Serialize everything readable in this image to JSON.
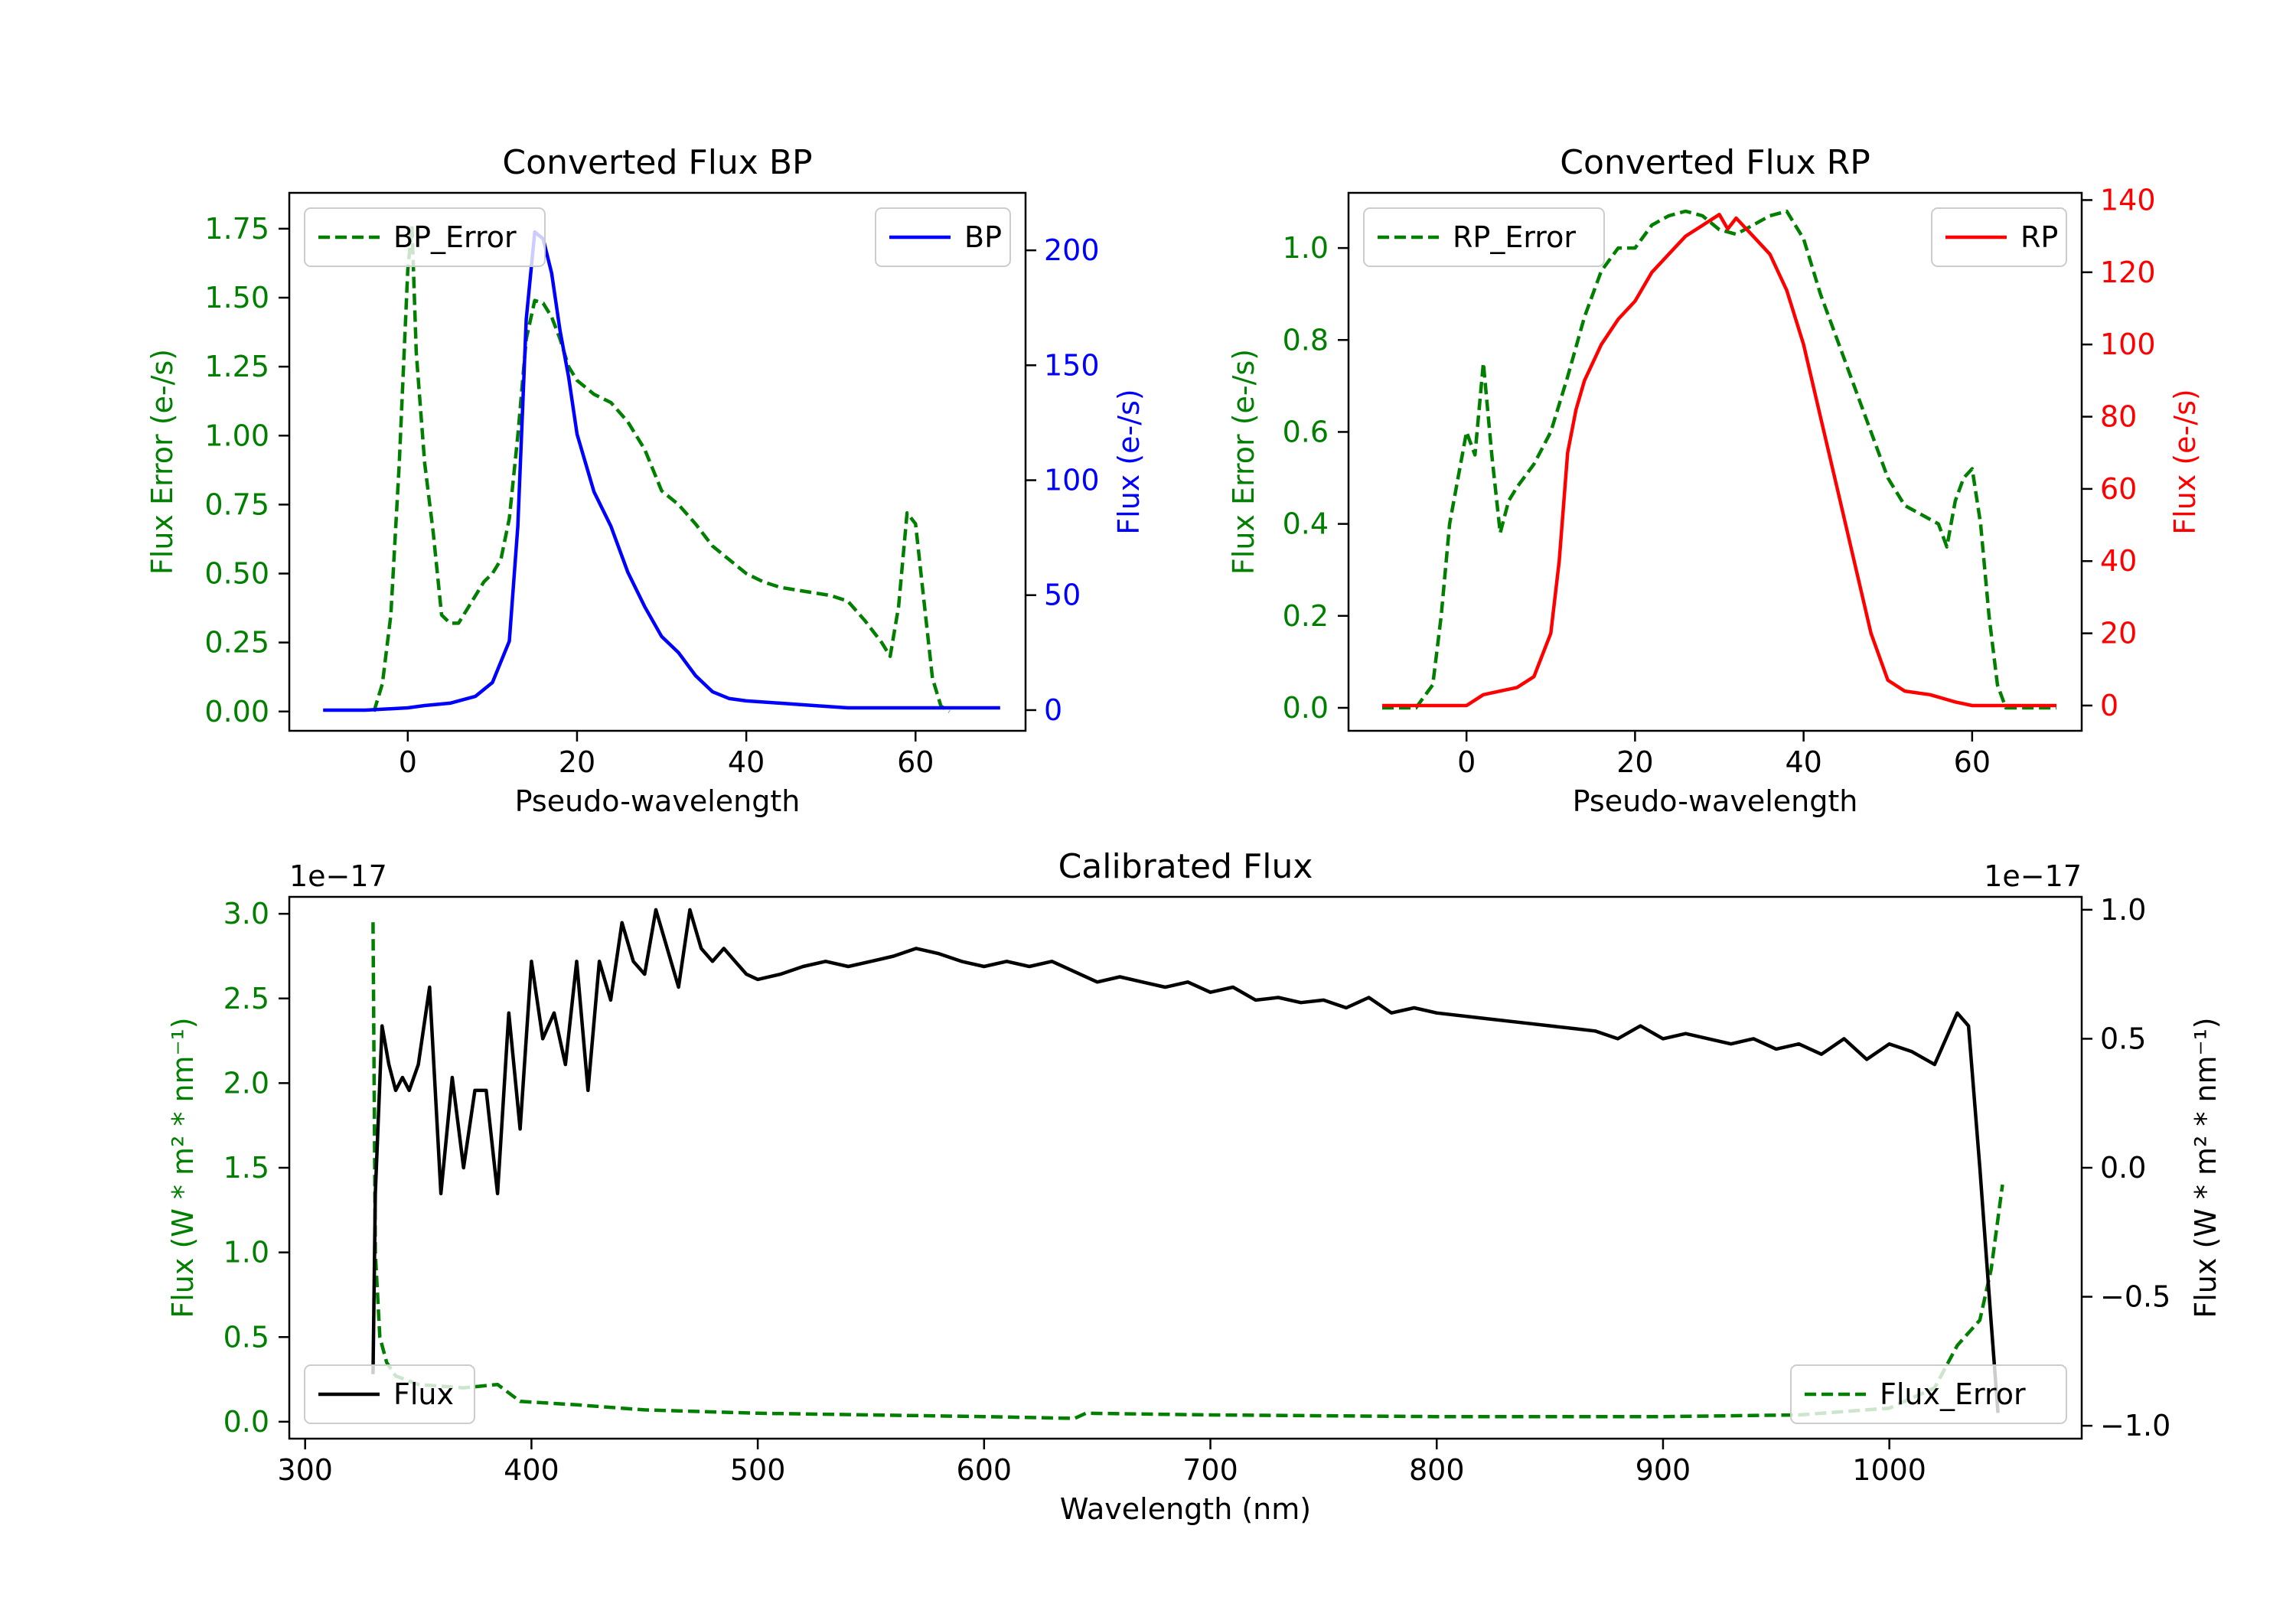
{
  "figure": {
    "colors": {
      "green": "#007f00",
      "blue": "#0000ff",
      "red": "#ff0000",
      "black": "#000000"
    }
  },
  "chart_data": [
    {
      "type": "line",
      "title": "Converted Flux BP",
      "xlabel": "Pseudo-wavelength",
      "ylabel_left": "Flux Error (e-/s)",
      "ylabel_right": "Flux (e-/s)",
      "xlim": [
        -14,
        73
      ],
      "ylim_left": [
        -0.07,
        1.88
      ],
      "ylim_right": [
        -9,
        225
      ],
      "xticks": [
        0,
        20,
        40,
        60
      ],
      "xtick_labels": [
        "0",
        "20",
        "40",
        "60"
      ],
      "yticks_left": [
        0,
        0.25,
        0.5,
        0.75,
        1.0,
        1.25,
        1.5,
        1.75
      ],
      "ytick_labels_left": [
        "0.00",
        "0.25",
        "0.50",
        "0.75",
        "1.00",
        "1.25",
        "1.50",
        "1.75"
      ],
      "yticks_right": [
        0,
        50,
        100,
        150,
        200
      ],
      "ytick_labels_right": [
        "0",
        "50",
        "100",
        "150",
        "200"
      ],
      "legend_left": {
        "label": "BP_Error",
        "loc": "upper left"
      },
      "legend_right": {
        "label": "BP",
        "loc": "upper right"
      },
      "series": [
        {
          "name": "BP_Error",
          "axis": "left",
          "color": "#007f00",
          "style": "dashed",
          "x": [
            -4,
            -3,
            -2,
            -1,
            0,
            0.5,
            1,
            2,
            3,
            4,
            5,
            6,
            7,
            8,
            9,
            10,
            11,
            12,
            13,
            14,
            15,
            16,
            17,
            18,
            19,
            20,
            22,
            24,
            26,
            28,
            30,
            32,
            34,
            36,
            38,
            40,
            42,
            44,
            46,
            48,
            50,
            52,
            54,
            56,
            57,
            58,
            59,
            60,
            61,
            62,
            63,
            64
          ],
          "y": [
            0.0,
            0.1,
            0.35,
            0.9,
            1.6,
            1.76,
            1.3,
            0.9,
            0.65,
            0.35,
            0.32,
            0.32,
            0.37,
            0.42,
            0.47,
            0.5,
            0.55,
            0.7,
            1.0,
            1.35,
            1.49,
            1.48,
            1.43,
            1.35,
            1.25,
            1.2,
            1.15,
            1.12,
            1.05,
            0.95,
            0.8,
            0.75,
            0.68,
            0.6,
            0.55,
            0.5,
            0.47,
            0.45,
            0.44,
            0.43,
            0.42,
            0.4,
            0.33,
            0.25,
            0.2,
            0.38,
            0.72,
            0.68,
            0.4,
            0.12,
            0.02,
            0.0
          ]
        },
        {
          "name": "BP",
          "axis": "right",
          "color": "#0000ff",
          "style": "solid",
          "x": [
            -10,
            -5,
            0,
            2,
            5,
            8,
            10,
            12,
            13,
            14,
            15,
            16,
            17,
            18,
            19,
            20,
            22,
            24,
            26,
            28,
            30,
            32,
            34,
            36,
            38,
            40,
            44,
            48,
            52,
            56,
            60,
            65,
            70
          ],
          "y": [
            0,
            0,
            1,
            2,
            3,
            6,
            12,
            30,
            80,
            170,
            208,
            205,
            190,
            165,
            145,
            120,
            95,
            80,
            60,
            45,
            32,
            25,
            15,
            8,
            5,
            4,
            3,
            2,
            1,
            1,
            1,
            1,
            1
          ]
        }
      ]
    },
    {
      "type": "line",
      "title": "Converted Flux RP",
      "xlabel": "Pseudo-wavelength",
      "ylabel_left": "Flux Error (e-/s)",
      "ylabel_right": "Flux (e-/s)",
      "xlim": [
        -14,
        73
      ],
      "ylim_left": [
        -0.05,
        1.12
      ],
      "ylim_right": [
        -7,
        142
      ],
      "xticks": [
        0,
        20,
        40,
        60
      ],
      "xtick_labels": [
        "0",
        "20",
        "40",
        "60"
      ],
      "yticks_left": [
        0,
        0.2,
        0.4,
        0.6,
        0.8,
        1.0
      ],
      "ytick_labels_left": [
        "0.0",
        "0.2",
        "0.4",
        "0.6",
        "0.8",
        "1.0"
      ],
      "yticks_right": [
        0,
        20,
        40,
        60,
        80,
        100,
        120,
        140
      ],
      "ytick_labels_right": [
        "0",
        "20",
        "40",
        "60",
        "80",
        "100",
        "120",
        "140"
      ],
      "legend_left": {
        "label": "RP_Error",
        "loc": "upper left"
      },
      "legend_right": {
        "label": "RP",
        "loc": "upper right"
      },
      "series": [
        {
          "name": "RP_Error",
          "axis": "left",
          "color": "#007f00",
          "style": "dashed",
          "x": [
            -10,
            -6,
            -4,
            -3,
            -2,
            -1,
            0,
            1,
            2,
            3,
            4,
            5,
            6,
            8,
            10,
            12,
            14,
            16,
            18,
            20,
            22,
            24,
            26,
            28,
            30,
            32,
            34,
            36,
            38,
            40,
            42,
            44,
            46,
            48,
            50,
            52,
            54,
            56,
            57,
            58,
            59,
            60,
            61,
            62,
            63,
            64,
            65,
            70
          ],
          "y": [
            0.0,
            0.0,
            0.05,
            0.2,
            0.4,
            0.5,
            0.6,
            0.55,
            0.75,
            0.55,
            0.38,
            0.45,
            0.48,
            0.53,
            0.6,
            0.72,
            0.85,
            0.95,
            1.0,
            1.0,
            1.05,
            1.07,
            1.08,
            1.07,
            1.04,
            1.03,
            1.05,
            1.07,
            1.08,
            1.02,
            0.9,
            0.8,
            0.7,
            0.6,
            0.5,
            0.44,
            0.42,
            0.4,
            0.35,
            0.45,
            0.5,
            0.52,
            0.4,
            0.2,
            0.05,
            0.0,
            0.0,
            0.0
          ]
        },
        {
          "name": "RP",
          "axis": "right",
          "color": "#ff0000",
          "style": "solid",
          "x": [
            -10,
            -5,
            0,
            2,
            4,
            6,
            8,
            10,
            11,
            12,
            13,
            14,
            16,
            18,
            20,
            22,
            24,
            26,
            28,
            30,
            31,
            32,
            34,
            36,
            38,
            40,
            42,
            44,
            46,
            48,
            50,
            52,
            55,
            58,
            60,
            65,
            70
          ],
          "y": [
            0,
            0,
            0,
            3,
            4,
            5,
            8,
            20,
            40,
            70,
            82,
            90,
            100,
            107,
            112,
            120,
            125,
            130,
            133,
            136,
            132,
            135,
            130,
            125,
            115,
            100,
            80,
            60,
            40,
            20,
            7,
            4,
            3,
            1,
            0,
            0,
            0
          ]
        }
      ]
    },
    {
      "type": "line",
      "title": "Calibrated Flux",
      "xlabel": "Wavelength (nm)",
      "ylabel_left": "Flux (W * m² * nm⁻¹)",
      "ylabel_right": "Flux (W * m² * nm⁻¹)",
      "offset_left": "1e−17",
      "offset_right": "1e−17",
      "xlim": [
        293,
        1085
      ],
      "ylim_left": [
        -0.1,
        3.1
      ],
      "ylim_right": [
        -1.05,
        1.05
      ],
      "xticks": [
        300,
        400,
        500,
        600,
        700,
        800,
        900,
        1000
      ],
      "xtick_labels": [
        "300",
        "400",
        "500",
        "600",
        "700",
        "800",
        "900",
        "1000"
      ],
      "yticks_left": [
        0,
        0.5,
        1.0,
        1.5,
        2.0,
        2.5,
        3.0
      ],
      "ytick_labels_left": [
        "0.0",
        "0.5",
        "1.0",
        "1.5",
        "2.0",
        "2.5",
        "3.0"
      ],
      "yticks_right": [
        -1.0,
        -0.5,
        0.0,
        0.5,
        1.0
      ],
      "ytick_labels_right": [
        "−1.0",
        "−0.5",
        "0.0",
        "0.5",
        "1.0"
      ],
      "legend_left": {
        "label": "Flux",
        "loc": "lower left"
      },
      "legend_right": {
        "label": "Flux_Error",
        "loc": "lower right"
      },
      "series": [
        {
          "name": "Flux_Error",
          "axis": "left",
          "color": "#007f00",
          "style": "dashed",
          "x": [
            330,
            331,
            333,
            336,
            340,
            350,
            370,
            385,
            395,
            420,
            450,
            500,
            550,
            600,
            640,
            645,
            700,
            800,
            900,
            960,
            1000,
            1020,
            1030,
            1040,
            1045,
            1050
          ],
          "y": [
            2.95,
            1.0,
            0.5,
            0.35,
            0.27,
            0.22,
            0.2,
            0.22,
            0.12,
            0.1,
            0.07,
            0.05,
            0.04,
            0.03,
            0.02,
            0.05,
            0.04,
            0.03,
            0.03,
            0.04,
            0.08,
            0.2,
            0.45,
            0.6,
            0.9,
            1.4
          ]
        },
        {
          "name": "Flux",
          "axis": "right",
          "color": "#000000",
          "style": "solid",
          "x": [
            330,
            331,
            334,
            337,
            340,
            343,
            346,
            350,
            355,
            360,
            365,
            370,
            375,
            380,
            385,
            390,
            395,
            400,
            405,
            410,
            415,
            420,
            425,
            430,
            435,
            440,
            445,
            450,
            455,
            460,
            465,
            470,
            475,
            480,
            485,
            490,
            495,
            500,
            510,
            520,
            530,
            540,
            550,
            560,
            570,
            580,
            590,
            600,
            610,
            620,
            630,
            640,
            650,
            660,
            670,
            680,
            690,
            700,
            710,
            720,
            730,
            740,
            750,
            760,
            770,
            780,
            790,
            800,
            820,
            840,
            860,
            870,
            880,
            890,
            900,
            910,
            920,
            930,
            940,
            950,
            960,
            970,
            980,
            990,
            1000,
            1010,
            1020,
            1025,
            1030,
            1035,
            1040,
            1045,
            1048
          ],
          "y": [
            -0.8,
            -0.1,
            0.55,
            0.4,
            0.3,
            0.35,
            0.3,
            0.4,
            0.7,
            -0.1,
            0.35,
            0.0,
            0.3,
            0.3,
            -0.1,
            0.6,
            0.15,
            0.8,
            0.5,
            0.6,
            0.4,
            0.8,
            0.3,
            0.8,
            0.65,
            0.95,
            0.8,
            0.75,
            1.0,
            0.85,
            0.7,
            1.0,
            0.85,
            0.8,
            0.85,
            0.8,
            0.75,
            0.73,
            0.75,
            0.78,
            0.8,
            0.78,
            0.8,
            0.82,
            0.85,
            0.83,
            0.8,
            0.78,
            0.8,
            0.78,
            0.8,
            0.76,
            0.72,
            0.74,
            0.72,
            0.7,
            0.72,
            0.68,
            0.7,
            0.65,
            0.66,
            0.64,
            0.65,
            0.62,
            0.66,
            0.6,
            0.62,
            0.6,
            0.58,
            0.56,
            0.54,
            0.53,
            0.5,
            0.55,
            0.5,
            0.52,
            0.5,
            0.48,
            0.5,
            0.46,
            0.48,
            0.44,
            0.5,
            0.42,
            0.48,
            0.45,
            0.4,
            0.5,
            0.6,
            0.55,
            0.0,
            -0.6,
            -0.95
          ]
        }
      ]
    }
  ]
}
